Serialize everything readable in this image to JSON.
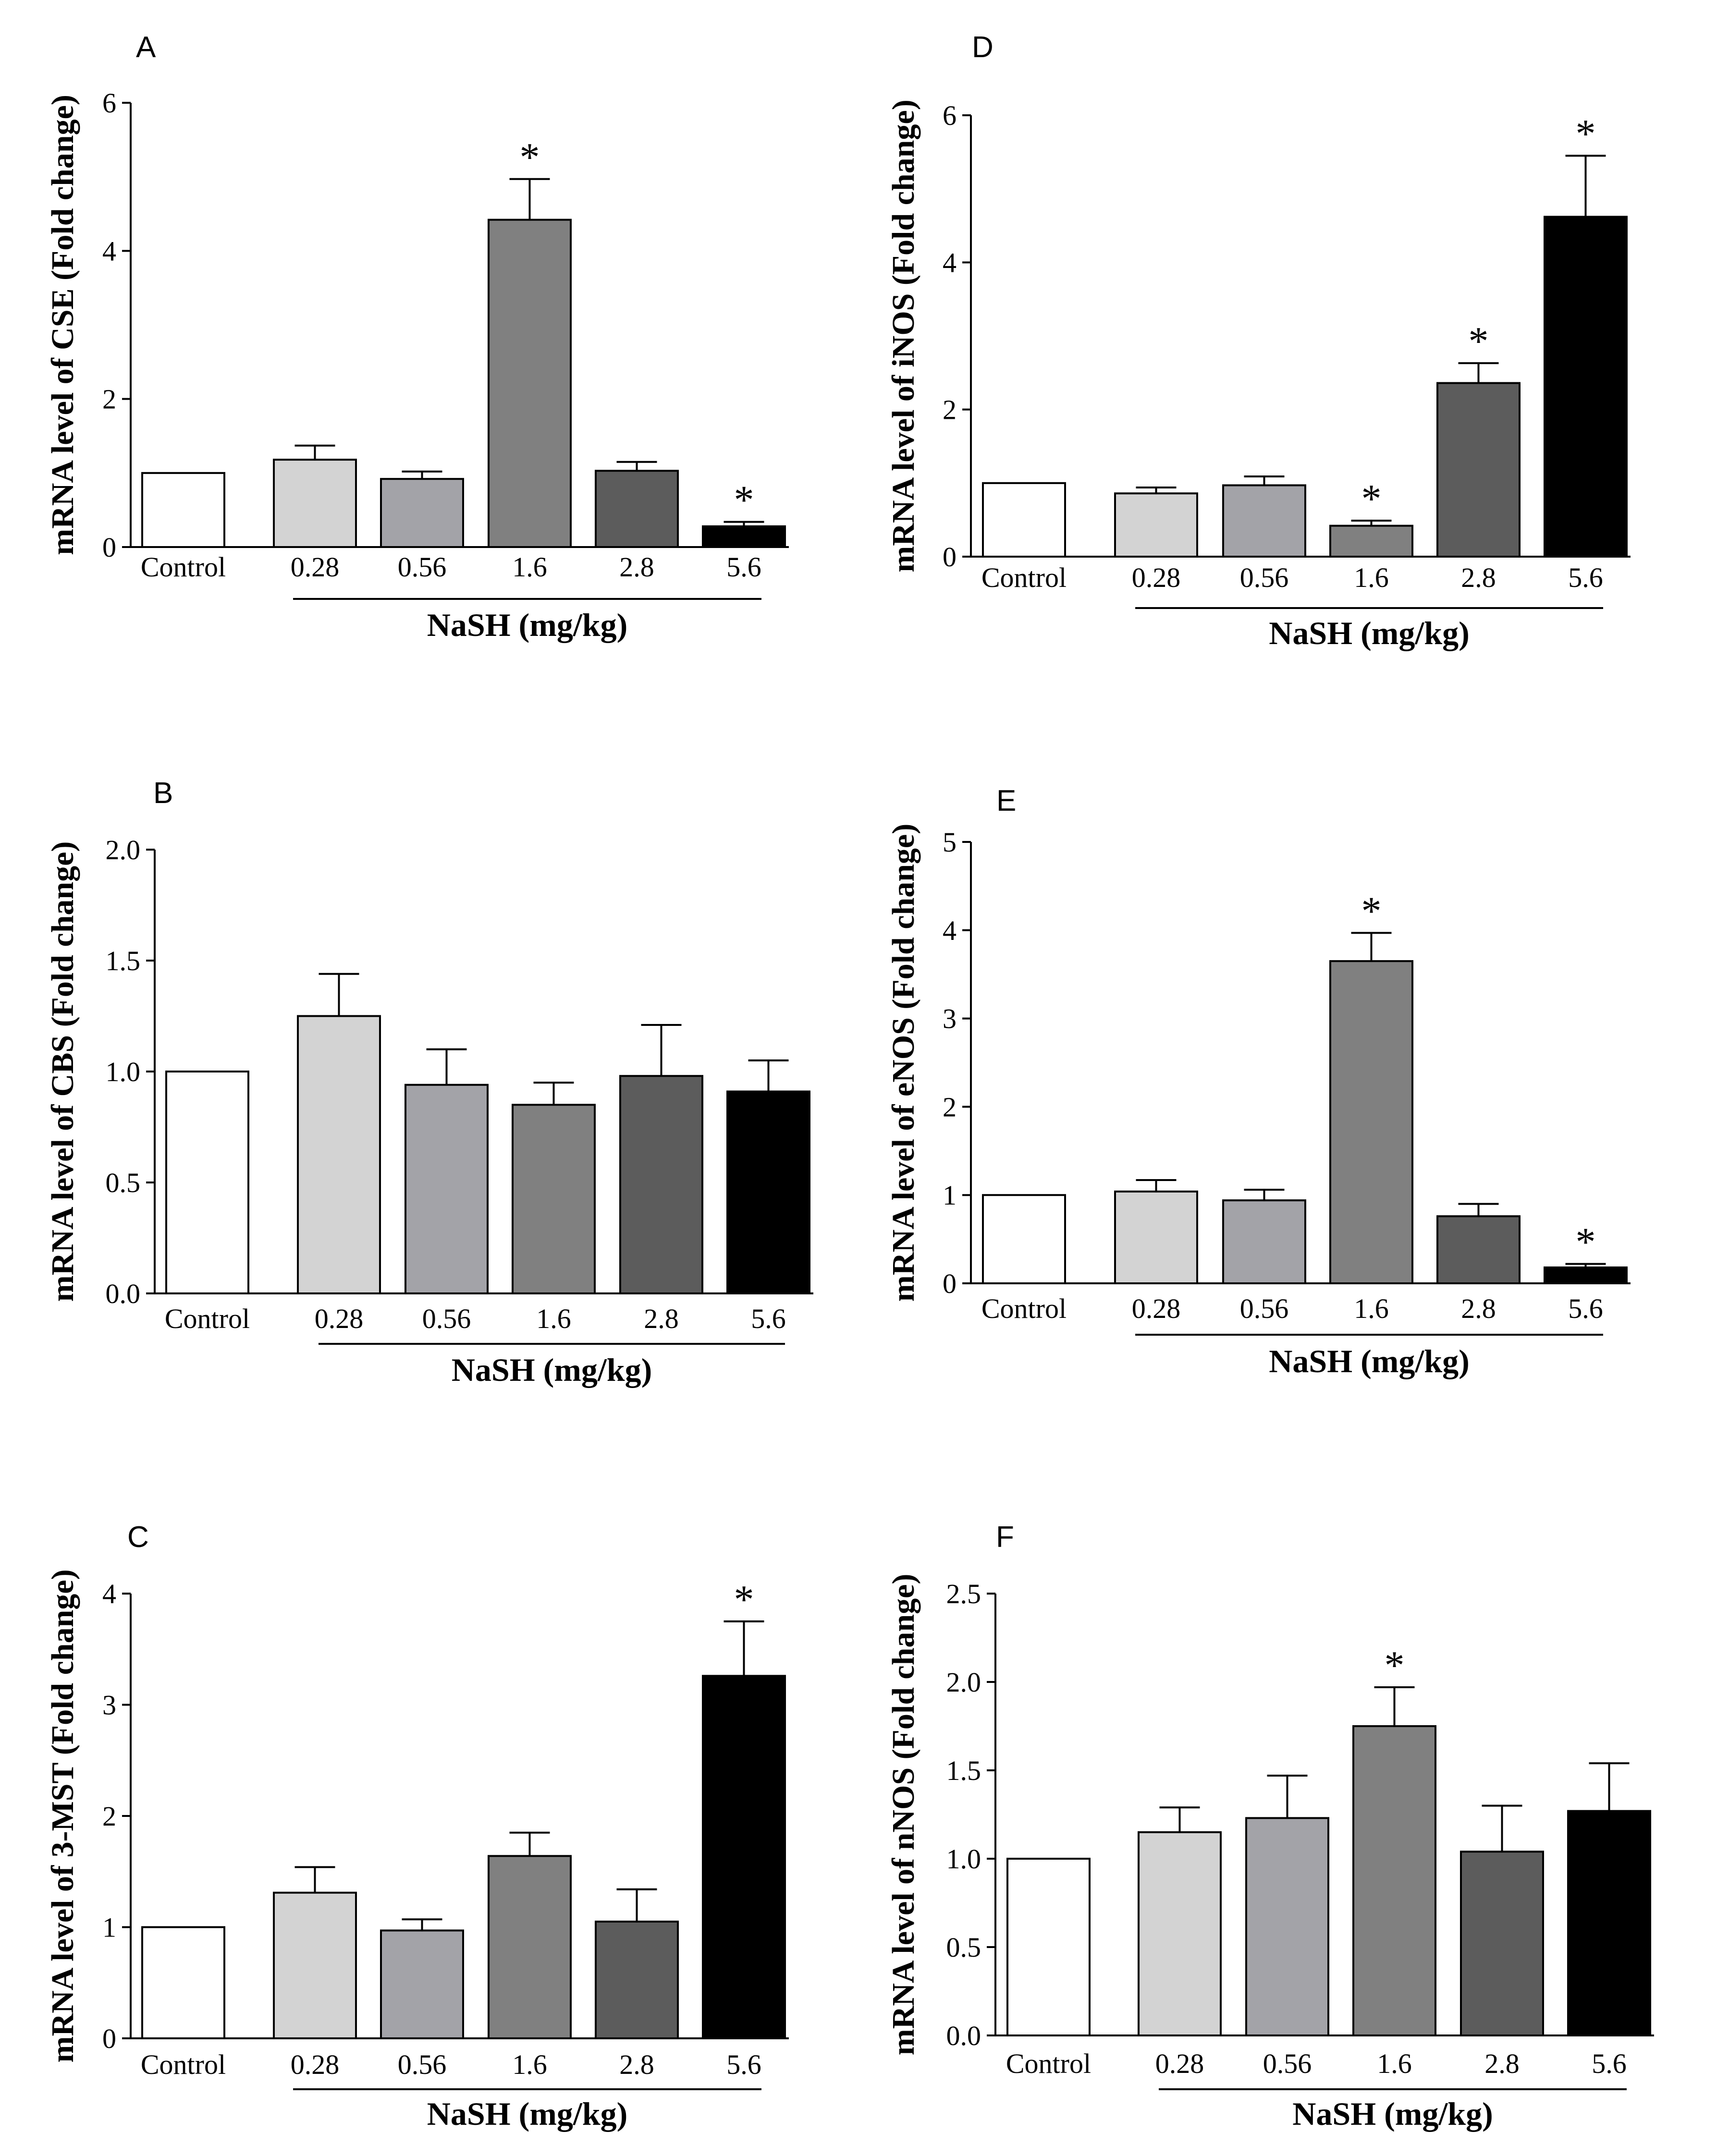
{
  "colors": {
    "bars": [
      "#ffffff",
      "#d3d3d3",
      "#a3a3a8",
      "#808080",
      "#5c5c5c",
      "#000000"
    ],
    "stroke": "#000000"
  },
  "chart_data": [
    {
      "panel": "A",
      "type": "bar",
      "categories": [
        "Control",
        "0.28",
        "0.56",
        "1.6",
        "2.8",
        "5.6"
      ],
      "values": [
        1.0,
        1.18,
        0.92,
        4.42,
        1.03,
        0.28
      ],
      "errors": [
        0,
        0.19,
        0.1,
        0.55,
        0.12,
        0.06
      ],
      "significant": [
        false,
        false,
        false,
        true,
        false,
        true
      ],
      "significance_marker": "*",
      "ylabel": "mRNA level of CSE (Fold change)",
      "group_label": "NaSH (mg/kg)",
      "ylim": [
        0,
        6
      ],
      "yticks": [
        "0",
        "2",
        "4",
        "6"
      ],
      "tick_values": [
        0,
        2,
        4,
        6
      ]
    },
    {
      "panel": "B",
      "type": "bar",
      "categories": [
        "Control",
        "0.28",
        "0.56",
        "1.6",
        "2.8",
        "5.6"
      ],
      "values": [
        1.0,
        1.25,
        0.94,
        0.85,
        0.98,
        0.91
      ],
      "errors": [
        0,
        0.19,
        0.16,
        0.1,
        0.23,
        0.14
      ],
      "significant": [
        false,
        false,
        false,
        false,
        false,
        false
      ],
      "significance_marker": "*",
      "ylabel": "mRNA level of CBS (Fold change)",
      "group_label": "NaSH (mg/kg)",
      "ylim": [
        0,
        2.0
      ],
      "yticks": [
        "0.0",
        "0.5",
        "1.0",
        "1.5",
        "2.0"
      ],
      "tick_values": [
        0,
        0.5,
        1.0,
        1.5,
        2.0
      ]
    },
    {
      "panel": "C",
      "type": "bar",
      "categories": [
        "Control",
        "0.28",
        "0.56",
        "1.6",
        "2.8",
        "5.6"
      ],
      "values": [
        1.0,
        1.31,
        0.97,
        1.64,
        1.05,
        3.26
      ],
      "errors": [
        0,
        0.23,
        0.1,
        0.21,
        0.29,
        0.49
      ],
      "significant": [
        false,
        false,
        false,
        false,
        false,
        true
      ],
      "significance_marker": "*",
      "ylabel": "mRNA level of 3-MST (Fold change)",
      "group_label": "NaSH (mg/kg)",
      "ylim": [
        0,
        4
      ],
      "yticks": [
        "0",
        "1",
        "2",
        "3",
        "4"
      ],
      "tick_values": [
        0,
        1,
        2,
        3,
        4
      ]
    },
    {
      "panel": "D",
      "type": "bar",
      "categories": [
        "Control",
        "0.28",
        "0.56",
        "1.6",
        "2.8",
        "5.6"
      ],
      "values": [
        1.0,
        0.86,
        0.97,
        0.42,
        2.36,
        4.62
      ],
      "errors": [
        0,
        0.08,
        0.12,
        0.07,
        0.27,
        0.83
      ],
      "significant": [
        false,
        false,
        false,
        true,
        true,
        true
      ],
      "significance_marker": "*",
      "ylabel": "mRNA level of iNOS (Fold change)",
      "group_label": "NaSH (mg/kg)",
      "ylim": [
        0,
        6
      ],
      "yticks": [
        "0",
        "2",
        "4",
        "6"
      ],
      "tick_values": [
        0,
        2,
        4,
        6
      ]
    },
    {
      "panel": "E",
      "type": "bar",
      "categories": [
        "Control",
        "0.28",
        "0.56",
        "1.6",
        "2.8",
        "5.6"
      ],
      "values": [
        1.0,
        1.04,
        0.94,
        3.65,
        0.76,
        0.18
      ],
      "errors": [
        0,
        0.13,
        0.12,
        0.32,
        0.14,
        0.04
      ],
      "significant": [
        false,
        false,
        false,
        true,
        false,
        true
      ],
      "significance_marker": "*",
      "ylabel": "mRNA level of eNOS (Fold change)",
      "group_label": "NaSH (mg/kg)",
      "ylim": [
        0,
        5
      ],
      "yticks": [
        "0",
        "1",
        "2",
        "3",
        "4",
        "5"
      ],
      "tick_values": [
        0,
        1,
        2,
        3,
        4,
        5
      ]
    },
    {
      "panel": "F",
      "type": "bar",
      "categories": [
        "Control",
        "0.28",
        "0.56",
        "1.6",
        "2.8",
        "5.6"
      ],
      "values": [
        1.0,
        1.15,
        1.23,
        1.75,
        1.04,
        1.27
      ],
      "errors": [
        0,
        0.14,
        0.24,
        0.22,
        0.26,
        0.27
      ],
      "significant": [
        false,
        false,
        false,
        true,
        false,
        false
      ],
      "significance_marker": "*",
      "ylabel": "mRNA level of nNOS (Fold change)",
      "group_label": "NaSH (mg/kg)",
      "ylim": [
        0,
        2.5
      ],
      "yticks": [
        "0.0",
        "0.5",
        "1.0",
        "1.5",
        "2.0",
        "2.5"
      ],
      "tick_values": [
        0,
        0.5,
        1.0,
        1.5,
        2.0,
        2.5
      ]
    }
  ]
}
